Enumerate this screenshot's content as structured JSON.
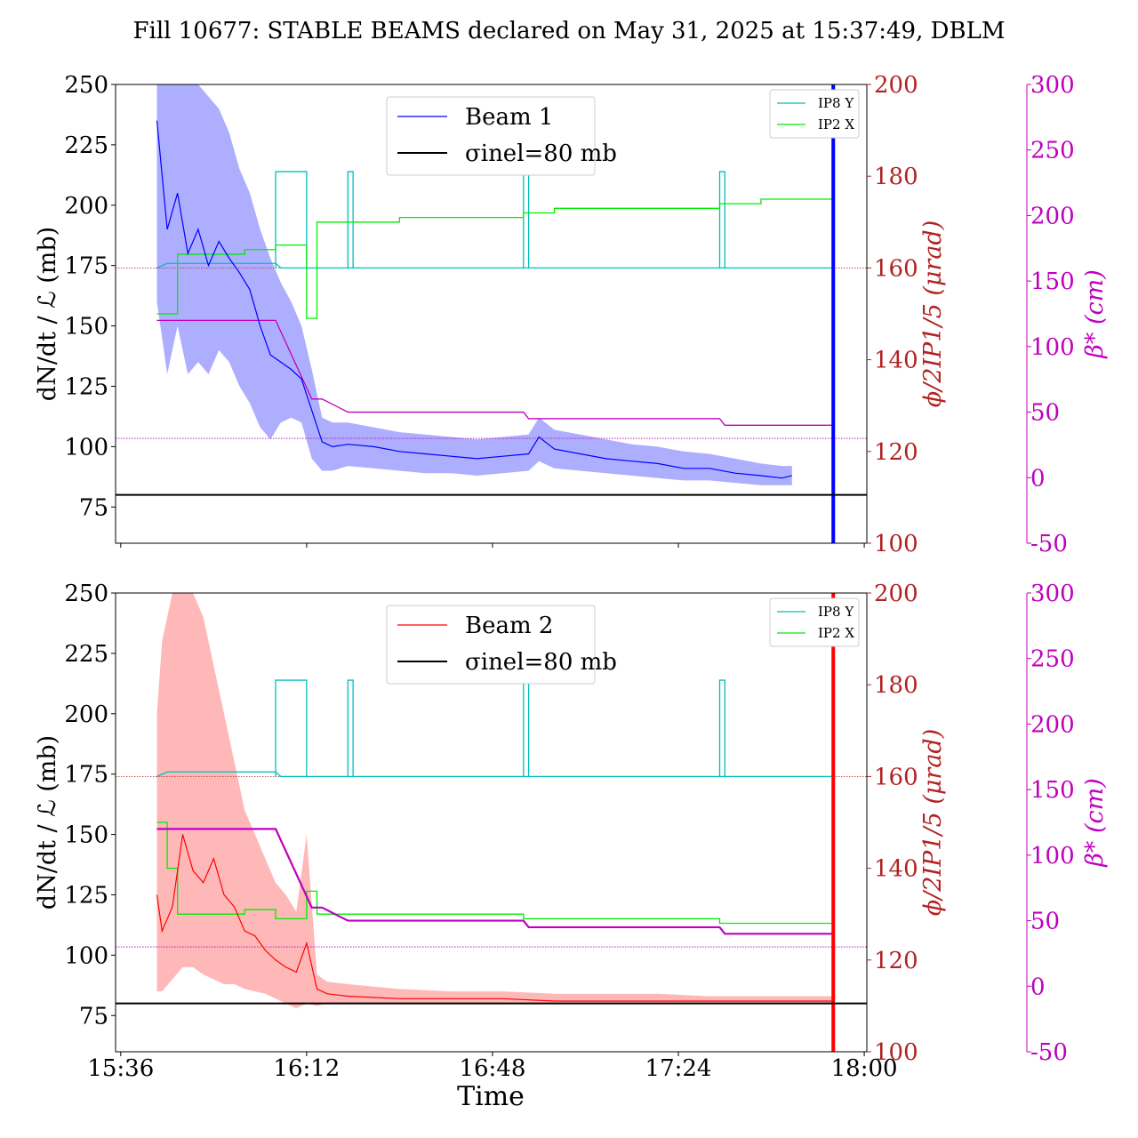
{
  "figure": {
    "title": "Fill 10677: STABLE BEAMS declared on May 31, 2025 at 15:37:49, DBLM",
    "xlabel": "Time"
  },
  "colors": {
    "beam1": "#0000ff",
    "beam1_band": "#8c8cff",
    "beam2": "#ff0000",
    "beam2_band": "#ff9a9a",
    "ip8y": "#00bfbf",
    "ip2x": "#00ee00",
    "betastar": "#bf00bf",
    "crossing_axis": "#b22222",
    "sigma": "#000000"
  },
  "chart_data": [
    {
      "type": "line",
      "panel": "top",
      "ylabel": "dN/dt / ℒ (mb)",
      "ylabel_right1": "ϕ/2IP1/5 (μrad)",
      "ylabel_right2": "β* (cm)",
      "ylim": [
        60,
        250
      ],
      "ylim_right1": [
        100,
        200
      ],
      "ylim_right2": [
        -50,
        300
      ],
      "x_ticks": [
        "15:36",
        "16:12",
        "16:48",
        "17:24",
        "18:00"
      ],
      "y_ticks": [
        75,
        100,
        125,
        150,
        175,
        200,
        225,
        250
      ],
      "y_ticks_right1": [
        100,
        120,
        140,
        160,
        180,
        200
      ],
      "y_ticks_right2": [
        -50,
        0,
        50,
        100,
        150,
        200,
        250,
        300
      ],
      "legend_main": {
        "placement": "upper-center",
        "entries": [
          "Beam 1",
          "σinel=80 mb"
        ]
      },
      "legend_ip": {
        "placement": "top-right",
        "entries": [
          "IP8 Y",
          "IP2 X"
        ]
      },
      "sigma_inel": 80,
      "hline_crossing_urad": 160,
      "hline_betastar_cm": 30,
      "beam": {
        "name": "Beam 1",
        "x": [
          "15:43",
          "15:45",
          "15:47",
          "15:49",
          "15:51",
          "15:53",
          "15:55",
          "15:57",
          "15:59",
          "16:01",
          "16:03",
          "16:05",
          "16:07",
          "16:09",
          "16:11",
          "16:13",
          "16:15",
          "16:17",
          "16:20",
          "16:25",
          "16:30",
          "16:35",
          "16:40",
          "16:45",
          "16:50",
          "16:55",
          "16:57",
          "17:00",
          "17:05",
          "17:10",
          "17:15",
          "17:20",
          "17:25",
          "17:30",
          "17:35",
          "17:40",
          "17:44",
          "17:46"
        ],
        "values": [
          235,
          190,
          205,
          180,
          190,
          175,
          185,
          178,
          172,
          165,
          150,
          138,
          135,
          132,
          128,
          115,
          102,
          100,
          101,
          100,
          98,
          97,
          96,
          95,
          96,
          97,
          104,
          99,
          97,
          95,
          94,
          93,
          91,
          91,
          89,
          88,
          87,
          88
        ],
        "band_low": [
          160,
          130,
          150,
          130,
          135,
          130,
          140,
          135,
          125,
          118,
          108,
          103,
          110,
          112,
          110,
          95,
          90,
          90,
          92,
          91,
          90,
          89,
          89,
          88,
          89,
          90,
          94,
          91,
          90,
          89,
          88,
          87,
          86,
          86,
          85,
          84,
          84,
          84
        ],
        "band_high": [
          250,
          250,
          250,
          250,
          250,
          245,
          240,
          230,
          215,
          205,
          190,
          178,
          168,
          160,
          150,
          132,
          112,
          110,
          110,
          108,
          106,
          105,
          104,
          103,
          104,
          105,
          112,
          107,
          105,
          103,
          101,
          100,
          98,
          97,
          95,
          93,
          92,
          92
        ],
        "spike": {
          "x": "17:54",
          "low": 60,
          "high": 250
        }
      },
      "ip8y": {
        "x": [
          "15:43",
          "15:45",
          "16:06",
          "16:07",
          "16:14",
          "16:15",
          "16:20",
          "16:21",
          "16:54",
          "16:55",
          "17:32",
          "17:33",
          "17:54"
        ],
        "values_urad": [
          160,
          161,
          161,
          160,
          160,
          160,
          160,
          160,
          160,
          160,
          160,
          160,
          160
        ],
        "steps": [
          {
            "x_start": "16:06",
            "x_end": "16:12",
            "value": 181
          },
          {
            "x_start": "16:20",
            "x_end": "16:21",
            "value": 181
          },
          {
            "x_start": "16:54",
            "x_end": "16:55",
            "value": 181
          },
          {
            "x_start": "17:32",
            "x_end": "17:33",
            "value": 181
          }
        ]
      },
      "ip2x": {
        "x": [
          "15:43",
          "15:45",
          "15:47",
          "16:00",
          "16:06",
          "16:12",
          "16:14",
          "16:30",
          "16:54",
          "17:00",
          "17:32",
          "17:40",
          "17:54"
        ],
        "values_urad": [
          150,
          150,
          163,
          164,
          165,
          149,
          170,
          171,
          172,
          173,
          174,
          175,
          175
        ]
      },
      "betastar": {
        "x": [
          "15:43",
          "16:06",
          "16:13",
          "16:15",
          "16:20",
          "16:54",
          "16:55",
          "17:32",
          "17:33",
          "17:54"
        ],
        "values_cm": [
          120,
          120,
          60,
          60,
          50,
          50,
          45,
          45,
          40,
          40
        ]
      }
    },
    {
      "type": "line",
      "panel": "bottom",
      "ylabel": "dN/dt / ℒ (mb)",
      "ylabel_right1": "ϕ/2IP1/5 (μrad)",
      "ylabel_right2": "β* (cm)",
      "ylim": [
        60,
        250
      ],
      "ylim_right1": [
        100,
        200
      ],
      "ylim_right2": [
        -50,
        300
      ],
      "x_ticks": [
        "15:36",
        "16:12",
        "16:48",
        "17:24",
        "18:00"
      ],
      "y_ticks": [
        75,
        100,
        125,
        150,
        175,
        200,
        225,
        250
      ],
      "y_ticks_right1": [
        100,
        120,
        140,
        160,
        180,
        200
      ],
      "y_ticks_right2": [
        -50,
        0,
        50,
        100,
        150,
        200,
        250,
        300
      ],
      "legend_main": {
        "placement": "upper-center",
        "entries": [
          "Beam 2",
          "σinel=80 mb"
        ]
      },
      "legend_ip": {
        "placement": "top-right",
        "entries": [
          "IP8 Y",
          "IP2 X"
        ]
      },
      "sigma_inel": 80,
      "hline_crossing_urad": 160,
      "hline_betastar_cm": 30,
      "beam": {
        "name": "Beam 2",
        "x": [
          "15:43",
          "15:44",
          "15:46",
          "15:48",
          "15:50",
          "15:52",
          "15:54",
          "15:56",
          "15:58",
          "16:00",
          "16:02",
          "16:04",
          "16:06",
          "16:08",
          "16:10",
          "16:12",
          "16:14",
          "16:16",
          "16:20",
          "16:30",
          "16:40",
          "16:50",
          "17:00",
          "17:10",
          "17:20",
          "17:30",
          "17:40",
          "17:50",
          "17:54"
        ],
        "values": [
          125,
          110,
          120,
          150,
          135,
          130,
          140,
          125,
          120,
          110,
          108,
          102,
          98,
          95,
          93,
          105,
          86,
          84,
          83,
          82,
          82,
          82,
          81,
          81,
          81,
          81,
          81,
          81,
          81
        ],
        "band_low": [
          85,
          85,
          90,
          95,
          95,
          92,
          90,
          88,
          88,
          86,
          85,
          84,
          82,
          80,
          78,
          80,
          79,
          80,
          80,
          80,
          80,
          80,
          80,
          80,
          80,
          80,
          80,
          80,
          80
        ],
        "band_high": [
          200,
          230,
          250,
          250,
          250,
          240,
          220,
          200,
          180,
          160,
          150,
          140,
          130,
          125,
          118,
          150,
          92,
          89,
          88,
          86,
          85,
          85,
          84,
          84,
          84,
          83,
          83,
          83,
          83
        ],
        "spike": {
          "x": "17:54",
          "low": 60,
          "high": 250
        }
      },
      "ip8y": {
        "x": [
          "15:43",
          "15:45",
          "16:06",
          "16:07",
          "16:14",
          "16:15",
          "16:20",
          "16:21",
          "16:54",
          "16:55",
          "17:32",
          "17:33",
          "17:54"
        ],
        "values_urad": [
          160,
          161,
          161,
          160,
          160,
          160,
          160,
          160,
          160,
          160,
          160,
          160,
          160
        ],
        "steps": [
          {
            "x_start": "16:06",
            "x_end": "16:12",
            "value": 181
          },
          {
            "x_start": "16:20",
            "x_end": "16:21",
            "value": 181
          },
          {
            "x_start": "16:54",
            "x_end": "16:55",
            "value": 181
          },
          {
            "x_start": "17:32",
            "x_end": "17:33",
            "value": 181
          }
        ]
      },
      "ip2x": {
        "x": [
          "15:43",
          "15:45",
          "15:47",
          "16:00",
          "16:06",
          "16:12",
          "16:14",
          "16:30",
          "16:54",
          "17:00",
          "17:32",
          "17:40",
          "17:54"
        ],
        "values_urad": [
          150,
          140,
          130,
          131,
          129,
          135,
          130,
          130,
          129,
          129,
          128,
          128,
          127
        ]
      },
      "betastar": {
        "x": [
          "15:43",
          "16:06",
          "16:13",
          "16:15",
          "16:20",
          "16:54",
          "16:55",
          "17:32",
          "17:33",
          "17:54"
        ],
        "values_cm": [
          120,
          120,
          60,
          60,
          50,
          50,
          45,
          45,
          40,
          40
        ]
      }
    }
  ]
}
